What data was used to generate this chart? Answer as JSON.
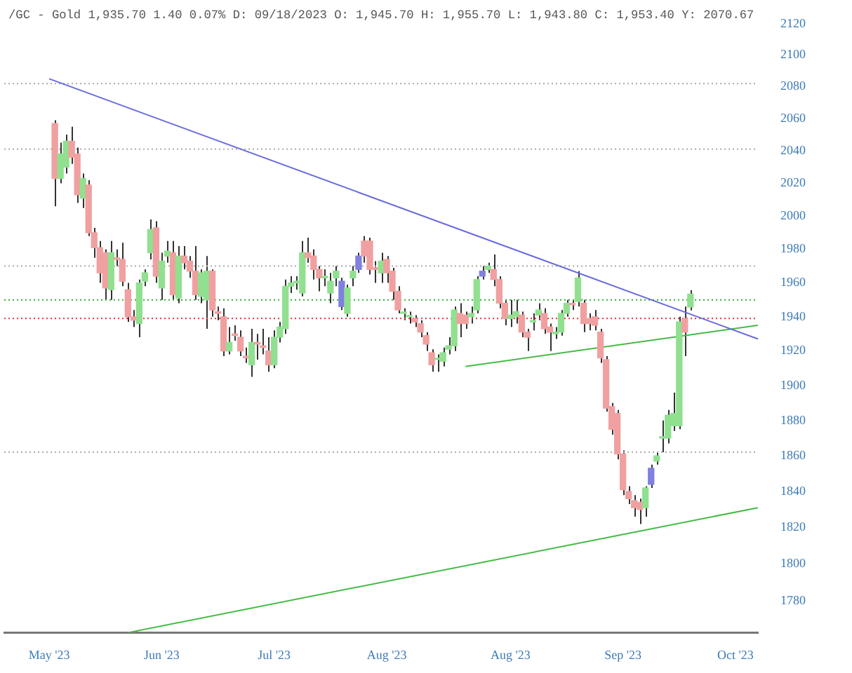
{
  "chart_data": {
    "type": "candlestick",
    "title": "/GC - Gold 1,935.70 1.40 0.07% D: 09/18/2023 O: 1,945.70 H: 1,955.70 L: 1,943.80 C: 1,953.40 Y: 2070.67",
    "categories": [
      null,
      null,
      null,
      null,
      null,
      null,
      null,
      null,
      "May '23",
      null,
      null,
      null,
      null,
      null,
      null,
      null,
      null,
      null,
      null,
      null,
      null,
      null,
      null,
      null,
      null,
      null,
      null,
      null,
      "Jun '23",
      null,
      null,
      null,
      null,
      null,
      null,
      null,
      null,
      null,
      null,
      null,
      null,
      null,
      null,
      null,
      null,
      null,
      null,
      null,
      "Jul '23",
      null,
      null,
      null,
      null,
      null,
      null,
      null,
      null,
      null,
      null,
      null,
      null,
      null,
      null,
      null,
      null,
      null,
      null,
      null,
      "Aug '23",
      null,
      null,
      null,
      null,
      null,
      null,
      null,
      null,
      null,
      null,
      null,
      null,
      null,
      null,
      null,
      null,
      null,
      null,
      null,
      null,
      null,
      "Aug '23",
      null,
      null,
      null,
      null,
      null,
      null,
      null,
      null,
      null,
      null,
      null,
      null,
      null,
      null,
      null,
      null,
      null,
      null,
      null,
      "Sep '23",
      null,
      null,
      null,
      null,
      null,
      null,
      null,
      null,
      null,
      null,
      null,
      null,
      null,
      null,
      null,
      null,
      null,
      null,
      null,
      "Oct '23",
      null,
      null,
      null,
      null
    ],
    "ohlc": [
      null,
      null,
      null,
      null,
      null,
      null,
      null,
      null,
      null,
      [
        2057,
        2059,
        2006,
        2023
      ],
      [
        2023,
        2045,
        2020,
        2038
      ],
      [
        2030,
        2050,
        2026,
        2046
      ],
      [
        2046,
        2055,
        2032,
        2036
      ],
      [
        2038,
        2042,
        2008,
        2013
      ],
      [
        2011,
        2026,
        2005,
        2023
      ],
      [
        2019,
        2022,
        1988,
        1990
      ],
      [
        1990,
        1993,
        1975,
        1981
      ],
      [
        1981,
        1985,
        1960,
        1966
      ],
      [
        1978,
        1980,
        1950,
        1957
      ],
      [
        1956,
        1985,
        1950,
        1978
      ],
      [
        1975,
        1980,
        1970,
        1974
      ],
      [
        1974,
        1984,
        1958,
        1961
      ],
      [
        1956,
        1960,
        1937,
        1940
      ],
      [
        1940,
        1944,
        1934,
        1938
      ],
      [
        1936,
        1962,
        1928,
        1960
      ],
      [
        1961,
        1968,
        1958,
        1966
      ],
      [
        1978,
        1998,
        1974,
        1992
      ],
      [
        1993,
        1997,
        1960,
        1964
      ],
      [
        1957,
        1978,
        1950,
        1973
      ],
      [
        1976,
        1985,
        1972,
        1979
      ],
      [
        1978,
        1985,
        1950,
        1953
      ],
      [
        1951,
        1982,
        1948,
        1976
      ],
      [
        1976,
        1982,
        1968,
        1972
      ],
      [
        1973,
        1976,
        1963,
        1967
      ],
      [
        1967,
        1982,
        1950,
        1953
      ],
      [
        1952,
        1968,
        1948,
        1966
      ],
      [
        1950,
        1976,
        1933,
        1967
      ],
      [
        1967,
        1968,
        1940,
        1944
      ],
      [
        1943,
        1946,
        1938,
        1942
      ],
      [
        1940,
        1945,
        1917,
        1920
      ],
      [
        1920,
        1934,
        1918,
        1925
      ],
      [
        1930,
        1935,
        1926,
        1929
      ],
      [
        1928,
        1932,
        1917,
        1920
      ],
      [
        1917,
        1922,
        1913,
        1916
      ],
      [
        1912,
        1933,
        1905,
        1925
      ],
      [
        1925,
        1930,
        1915,
        1924
      ],
      [
        1923,
        1933,
        1918,
        1922
      ],
      [
        1920,
        1928,
        1908,
        1912
      ],
      [
        1912,
        1932,
        1910,
        1928
      ],
      [
        1928,
        1937,
        1925,
        1934
      ],
      [
        1933,
        1962,
        1930,
        1958
      ],
      [
        1958,
        1964,
        1954,
        1960
      ],
      [
        1960,
        1964,
        1956,
        1961
      ],
      [
        1954,
        1985,
        1952,
        1978
      ],
      [
        1978,
        1987,
        1972,
        1975
      ],
      [
        1976,
        1980,
        1962,
        1968
      ],
      [
        1968,
        1970,
        1955,
        1963
      ],
      [
        1963,
        1968,
        1958,
        1964
      ],
      [
        1954,
        1966,
        1948,
        1961
      ],
      [
        1963,
        1970,
        1958,
        1967
      ],
      [
        1961,
        1963,
        1944,
        1946
      ],
      [
        1942,
        1959,
        1940,
        1957
      ],
      [
        1963,
        1970,
        1958,
        1967
      ],
      [
        1968,
        1978,
        1966,
        1976
      ],
      [
        1985,
        1988,
        1972,
        1976
      ],
      [
        1985,
        1987,
        1965,
        1968
      ],
      [
        1969,
        1973,
        1960,
        1968
      ],
      [
        1966,
        1978,
        1960,
        1973
      ],
      [
        1974,
        1976,
        1960,
        1966
      ],
      [
        1967,
        1969,
        1950,
        1955
      ],
      [
        1955,
        1958,
        1942,
        1944
      ],
      [
        1942,
        1945,
        1938,
        1942
      ],
      [
        1940,
        1943,
        1936,
        1940
      ],
      [
        1939,
        1941,
        1934,
        1937
      ],
      [
        1936,
        1938,
        1928,
        1931
      ],
      [
        1929,
        1931,
        1920,
        1924
      ],
      [
        1919,
        1921,
        1908,
        1912
      ],
      [
        1915,
        1918,
        1908,
        1915
      ],
      [
        1914,
        1922,
        1911,
        1919
      ],
      [
        1921,
        1928,
        1918,
        1923
      ],
      [
        1923,
        1946,
        1920,
        1944
      ],
      [
        1942,
        1948,
        1928,
        1936
      ],
      [
        1941,
        1943,
        1933,
        1936
      ],
      [
        1940,
        1946,
        1936,
        1942
      ],
      [
        1944,
        1964,
        1942,
        1962
      ],
      [
        1964,
        1970,
        1962,
        1967
      ],
      [
        1968,
        1972,
        1966,
        1970
      ],
      [
        1968,
        1977,
        1958,
        1962
      ],
      [
        1962,
        1964,
        1945,
        1948
      ],
      [
        1948,
        1950,
        1935,
        1939
      ],
      [
        1939,
        1950,
        1934,
        1941
      ],
      [
        1940,
        1950,
        1936,
        1943
      ],
      [
        1941,
        1943,
        1928,
        1931
      ],
      [
        1931,
        1933,
        1920,
        1928
      ],
      [
        1937,
        1942,
        1932,
        1937
      ],
      [
        1941,
        1948,
        1938,
        1944
      ],
      [
        1942,
        1945,
        1930,
        1933
      ],
      [
        1934,
        1936,
        1920,
        1931
      ],
      [
        1930,
        1934,
        1927,
        1931
      ],
      [
        1931,
        1944,
        1929,
        1942
      ],
      [
        1942,
        1950,
        1940,
        1948
      ],
      [
        1948,
        1950,
        1944,
        1947
      ],
      [
        1949,
        1967,
        1946,
        1963
      ],
      [
        1948,
        1950,
        1931,
        1936
      ],
      [
        1939,
        1942,
        1932,
        1936
      ],
      [
        1940,
        1944,
        1932,
        1935
      ],
      [
        1931,
        1933,
        1913,
        1916
      ],
      [
        1915,
        1917,
        1885,
        1887
      ],
      [
        1888,
        1890,
        1872,
        1875
      ],
      [
        1884,
        1886,
        1858,
        1861
      ],
      [
        1861,
        1863,
        1838,
        1841
      ],
      [
        1840,
        1843,
        1833,
        1836
      ],
      [
        1835,
        1838,
        1826,
        1831
      ],
      [
        1834,
        1836,
        1822,
        1830
      ],
      [
        1831,
        1843,
        1826,
        1842
      ],
      [
        1844,
        1855,
        1842,
        1853
      ],
      [
        1857,
        1862,
        1855,
        1860
      ],
      [
        1870,
        1880,
        1862,
        1870
      ],
      [
        1870,
        1886,
        1867,
        1883
      ],
      [
        1877,
        1896,
        1874,
        1884
      ],
      [
        1877,
        1940,
        1875,
        1937
      ],
      [
        1939,
        1946,
        1917,
        1931
      ],
      [
        1945.7,
        1955.7,
        1943.8,
        1953.4
      ],
      null,
      null,
      null,
      null,
      null,
      null,
      null,
      null,
      null,
      null,
      null,
      null
    ],
    "colors": [
      null,
      null,
      null,
      null,
      null,
      null,
      null,
      null,
      null,
      "#f0a0a0",
      "#90e090",
      "#90e090",
      "#f0a0a0",
      "#f0a0a0",
      "#90e090",
      "#f0a0a0",
      "#f0a0a0",
      "#f0a0a0",
      "#f0a0a0",
      "#90e090",
      "#f0a0a0",
      "#f0a0a0",
      "#f0a0a0",
      "#f0a0a0",
      "#90e090",
      "#90e090",
      "#90e090",
      "#f0a0a0",
      "#90e090",
      "#90e090",
      "#f0a0a0",
      "#90e090",
      "#f0a0a0",
      "#f0a0a0",
      "#f0a0a0",
      "#90e090",
      "#90e090",
      "#f0a0a0",
      "#f0a0a0",
      "#f0a0a0",
      "#90e090",
      "#f0a0a0",
      "#f0a0a0",
      "#f0a0a0",
      "#90e090",
      "#f0a0a0",
      "#f0a0a0",
      "#f0a0a0",
      "#90e090",
      "#90e090",
      "#90e090",
      "#90e090",
      "#90e090",
      "#90e090",
      "#f0a0a0",
      "#f0a0a0",
      "#f0a0a0",
      "#90e090",
      "#90e090",
      "#90e090",
      "#8080e0",
      "#90e090",
      "#90e090",
      "#8080e0",
      "#f0a0a0",
      "#f0a0a0",
      "#f0a0a0",
      "#90e090",
      "#f0a0a0",
      "#f0a0a0",
      "#f0a0a0",
      "#90e090",
      "#90e090",
      "#f0a0a0",
      "#f0a0a0",
      "#f0a0a0",
      "#f0a0a0",
      "#90e090",
      "#90e090",
      "#90e090",
      "#90e090",
      "#f0a0a0",
      "#f0a0a0",
      "#90e090",
      "#90e090",
      "#8080e0",
      "#90e090",
      "#f0a0a0",
      "#f0a0a0",
      "#f0a0a0",
      "#90e090",
      "#90e090",
      "#f0a0a0",
      "#f0a0a0",
      "#90e090",
      "#90e090",
      "#f0a0a0",
      "#f0a0a0",
      "#90e090",
      "#90e090",
      "#90e090",
      "#f0a0a0",
      "#90e090",
      "#f0a0a0",
      "#f0a0a0",
      "#f0a0a0",
      "#f0a0a0",
      "#f0a0a0",
      "#f0a0a0",
      "#f0a0a0",
      "#f0a0a0",
      "#f0a0a0",
      "#f0a0a0",
      "#f0a0a0",
      "#90e090",
      "#8080e0",
      "#90e090",
      "#90e090",
      "#90e090",
      "#90e090",
      "#90e090",
      "#f0a0a0",
      "#90e090",
      null,
      null,
      null,
      null,
      null,
      null,
      null,
      null,
      null,
      null,
      null,
      null
    ],
    "series": [
      {
        "type": "line",
        "color": "#6a6ae0",
        "values": [
          null,
          null,
          null,
          null,
          null,
          null,
          null,
          null,
          2085,
          null,
          null,
          null,
          null,
          null,
          null,
          null,
          null,
          null,
          null,
          null,
          null,
          null,
          null,
          null,
          null,
          null,
          null,
          null,
          null,
          null,
          null,
          null,
          null,
          null,
          null,
          null,
          null,
          null,
          null,
          null,
          null,
          null,
          null,
          null,
          null,
          null,
          null,
          null,
          null,
          null,
          null,
          null,
          null,
          null,
          null,
          null,
          null,
          null,
          null,
          null,
          null,
          null,
          null,
          null,
          null,
          null,
          null,
          null,
          null,
          null,
          null,
          null,
          null,
          null,
          null,
          null,
          null,
          null,
          null,
          null,
          null,
          null,
          null,
          null,
          null,
          null,
          null,
          null,
          null,
          null,
          null,
          null,
          null,
          null,
          null,
          null,
          null,
          null,
          null,
          null,
          null,
          null,
          null,
          null,
          null,
          null,
          null,
          null,
          null,
          null,
          null,
          null,
          null,
          null,
          null,
          null,
          null,
          null,
          null,
          null,
          null,
          null,
          null,
          null,
          null,
          null,
          null,
          null,
          null,
          null,
          null,
          null,
          null,
          null,
          1927
        ]
      },
      {
        "type": "line",
        "color": "#44bb44",
        "values": [
          null,
          null,
          null,
          null,
          null,
          null,
          null,
          null,
          null,
          null,
          null,
          null,
          null,
          null,
          null,
          null,
          null,
          null,
          null,
          null,
          null,
          null,
          null,
          null,
          null,
          null,
          null,
          null,
          null,
          null,
          null,
          null,
          null,
          null,
          null,
          null,
          null,
          null,
          null,
          null,
          null,
          null,
          null,
          null,
          null,
          null,
          null,
          null,
          null,
          null,
          null,
          null,
          null,
          null,
          null,
          null,
          null,
          null,
          null,
          null,
          null,
          null,
          null,
          null,
          null,
          null,
          null,
          null,
          null,
          null,
          null,
          null,
          null,
          null,
          null,
          null,
          null,
          null,
          null,
          null,
          null,
          null,
          1911,
          null,
          null,
          null,
          null,
          null,
          null,
          null,
          null,
          null,
          null,
          null,
          null,
          null,
          null,
          null,
          null,
          null,
          null,
          null,
          null,
          null,
          null,
          null,
          null,
          null,
          null,
          null,
          null,
          null,
          null,
          null,
          null,
          null,
          null,
          null,
          null,
          null,
          null,
          null,
          null,
          null,
          null,
          null,
          null,
          null,
          null,
          null,
          null,
          null,
          null,
          null,
          1935
        ]
      },
      {
        "type": "line",
        "color": "#44bb44",
        "values": [
          null,
          null,
          null,
          null,
          null,
          null,
          null,
          null,
          null,
          null,
          null,
          null,
          null,
          null,
          null,
          null,
          null,
          null,
          null,
          null,
          null,
          null,
          1763,
          null,
          null,
          null,
          null,
          null,
          null,
          null,
          null,
          null,
          null,
          null,
          null,
          null,
          null,
          null,
          null,
          null,
          null,
          null,
          null,
          null,
          null,
          null,
          null,
          null,
          null,
          null,
          null,
          null,
          null,
          null,
          null,
          null,
          null,
          null,
          null,
          null,
          null,
          null,
          null,
          null,
          null,
          null,
          null,
          null,
          null,
          null,
          null,
          null,
          null,
          null,
          null,
          null,
          null,
          null,
          null,
          null,
          null,
          null,
          null,
          null,
          null,
          null,
          null,
          null,
          null,
          null,
          null,
          null,
          null,
          null,
          null,
          null,
          null,
          null,
          null,
          null,
          null,
          null,
          null,
          null,
          null,
          null,
          null,
          null,
          null,
          null,
          null,
          null,
          null,
          null,
          null,
          null,
          null,
          null,
          null,
          null,
          null,
          null,
          null,
          null,
          null,
          null,
          null,
          null,
          null,
          null,
          null,
          null,
          null,
          null,
          1831
        ]
      }
    ],
    "ylim": [
      1763,
      2120
    ],
    "yticks": [
      1780,
      1800,
      1820,
      1840,
      1860,
      1880,
      1900,
      1920,
      1940,
      1960,
      1980,
      2000,
      2020,
      2040,
      2060,
      2080,
      2100,
      2120
    ],
    "log": true,
    "ref_lines": [
      {
        "axis": "y",
        "value": 2082,
        "color": "#aaaaaa",
        "line_style": "dotted"
      },
      {
        "axis": "y",
        "value": 2041,
        "color": "#aaaaaa",
        "line_style": "dotted"
      },
      {
        "axis": "y",
        "value": 1970,
        "color": "#aaaaaa",
        "line_style": "dotted"
      },
      {
        "axis": "y",
        "value": 1950,
        "color": "#33aa33",
        "line_style": "dotted"
      },
      {
        "axis": "y",
        "value": 1939,
        "color": "#dd3333",
        "line_style": "dotted"
      },
      {
        "axis": "y",
        "value": 1862,
        "color": "#aaaaaa",
        "line_style": "dotted"
      }
    ]
  }
}
